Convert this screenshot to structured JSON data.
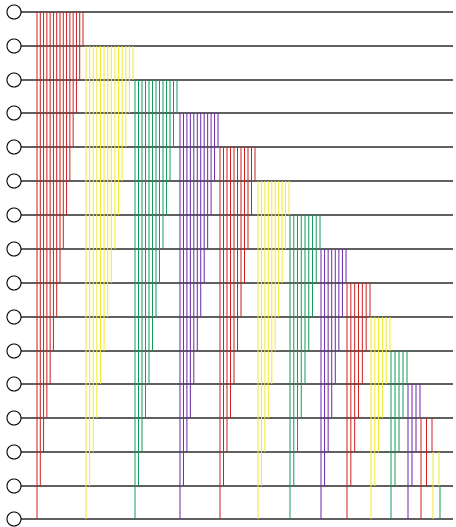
{
  "diagram": {
    "kind": "sorting-network",
    "wire_count": 16,
    "wire_color": "#000000",
    "node_stroke_color": "#000000",
    "node_fill_color": "#ffffff",
    "comparator_colors": [
      "#cc1f1f",
      "#f2ea2b",
      "#159a5c",
      "#6a2aa8"
    ],
    "groups": [
      {
        "anchor_wire": 0,
        "color_index": 0,
        "span_count": 15
      },
      {
        "anchor_wire": 1,
        "color_index": 1,
        "span_count": 14
      },
      {
        "anchor_wire": 2,
        "color_index": 2,
        "span_count": 13
      },
      {
        "anchor_wire": 3,
        "color_index": 3,
        "span_count": 12
      },
      {
        "anchor_wire": 4,
        "color_index": 0,
        "span_count": 11
      },
      {
        "anchor_wire": 5,
        "color_index": 1,
        "span_count": 10
      },
      {
        "anchor_wire": 6,
        "color_index": 2,
        "span_count": 9
      },
      {
        "anchor_wire": 7,
        "color_index": 3,
        "span_count": 8
      },
      {
        "anchor_wire": 8,
        "color_index": 0,
        "span_count": 7
      },
      {
        "anchor_wire": 9,
        "color_index": 1,
        "span_count": 6
      },
      {
        "anchor_wire": 10,
        "color_index": 2,
        "span_count": 5
      },
      {
        "anchor_wire": 11,
        "color_index": 3,
        "span_count": 4
      },
      {
        "anchor_wire": 12,
        "color_index": 0,
        "span_count": 3
      },
      {
        "anchor_wire": 13,
        "color_index": 1,
        "span_count": 2
      },
      {
        "anchor_wire": 14,
        "color_index": 2,
        "span_count": 1
      }
    ]
  }
}
